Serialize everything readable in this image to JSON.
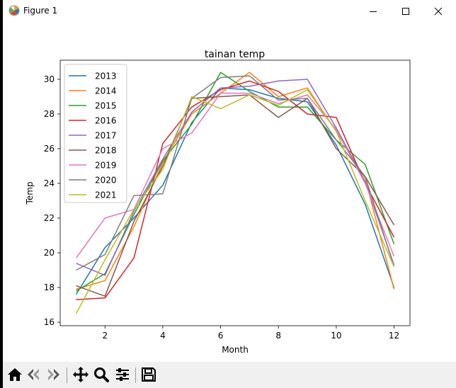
{
  "window": {
    "title": "Figure 1",
    "icons": {
      "app": "matplotlib-icon",
      "minimize": "minimize-icon",
      "maximize": "maximize-icon",
      "close": "close-icon"
    }
  },
  "toolbar": {
    "buttons": [
      {
        "name": "home-icon"
      },
      {
        "name": "back-icon"
      },
      {
        "name": "forward-icon"
      },
      {
        "name": "pan-icon"
      },
      {
        "name": "zoom-icon"
      },
      {
        "name": "configure-subplots-icon"
      },
      {
        "name": "save-icon"
      }
    ]
  },
  "chart_data": {
    "type": "line",
    "title": "tainan temp",
    "xlabel": "Month",
    "ylabel": "Temp",
    "xlim": [
      0.45,
      12.55
    ],
    "ylim": [
      15.8,
      31.1
    ],
    "x": [
      1,
      2,
      3,
      4,
      5,
      6,
      7,
      8,
      9,
      10,
      11,
      12
    ],
    "xticks": [
      2,
      4,
      6,
      8,
      10,
      12
    ],
    "yticks": [
      16,
      18,
      20,
      22,
      24,
      26,
      28,
      30
    ],
    "grid": false,
    "legend_position": "upper-left",
    "series": [
      {
        "name": "2013",
        "color": "#1f77b4",
        "values": [
          17.6,
          20.3,
          22.0,
          23.9,
          27.5,
          29.5,
          29.4,
          28.9,
          28.7,
          26.2,
          22.8,
          18.0
        ]
      },
      {
        "name": "2014",
        "color": "#ff7f0e",
        "values": [
          17.9,
          18.4,
          21.5,
          25.2,
          28.0,
          29.2,
          30.4,
          29.0,
          29.5,
          27.0,
          24.3,
          17.9
        ]
      },
      {
        "name": "2015",
        "color": "#2ca02c",
        "values": [
          17.8,
          18.8,
          22.2,
          25.3,
          27.4,
          30.4,
          29.3,
          28.4,
          28.4,
          26.5,
          25.1,
          20.5
        ]
      },
      {
        "name": "2016",
        "color": "#d62728",
        "values": [
          17.3,
          17.4,
          19.7,
          26.3,
          28.4,
          29.4,
          29.9,
          29.3,
          28.0,
          27.8,
          24.0,
          20.9
        ]
      },
      {
        "name": "2017",
        "color": "#9467bd",
        "values": [
          19.4,
          18.7,
          22.4,
          25.4,
          28.1,
          29.5,
          29.6,
          29.9,
          30.0,
          27.2,
          24.1,
          19.3
        ]
      },
      {
        "name": "2018",
        "color": "#8c564b",
        "values": [
          18.1,
          17.5,
          21.8,
          25.0,
          28.9,
          29.0,
          29.1,
          27.8,
          28.9,
          26.0,
          24.4,
          21.6
        ]
      },
      {
        "name": "2019",
        "color": "#e377c2",
        "values": [
          19.7,
          22.0,
          22.5,
          26.0,
          26.9,
          29.2,
          29.2,
          28.6,
          29.1,
          27.1,
          24.0,
          19.8
        ]
      },
      {
        "name": "2020",
        "color": "#7f7f7f",
        "values": [
          19.0,
          19.9,
          23.3,
          23.4,
          28.9,
          30.1,
          30.2,
          28.8,
          28.9,
          26.5,
          24.4,
          19.2
        ]
      },
      {
        "name": "2021",
        "color": "#bcbd22",
        "values": [
          16.5,
          19.6,
          22.5,
          24.8,
          29.0,
          28.3,
          29.1,
          28.5,
          29.4,
          27.0,
          23.0,
          19.2
        ]
      }
    ]
  }
}
